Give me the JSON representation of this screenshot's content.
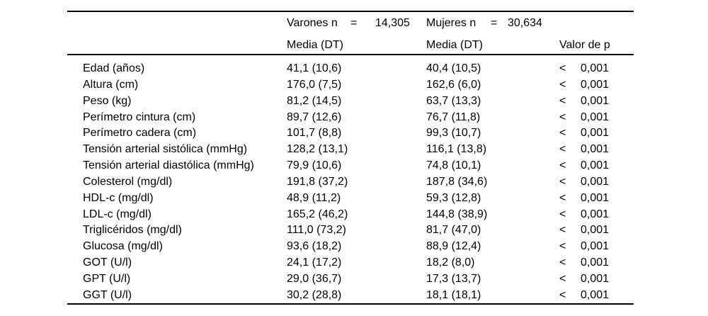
{
  "page": {
    "background_color": "#ffffff",
    "text_color": "#000000",
    "rule_color": "#000000"
  },
  "table": {
    "header": {
      "varones_label": "Varones n",
      "varones_eq": "=",
      "varones_n": "14,305",
      "mujeres_label": "Mujeres n",
      "mujeres_eq": "=",
      "mujeres_n": "30,634",
      "varones_media_dt": "Media (DT)",
      "mujeres_media_dt": "Media (DT)",
      "valor_de_p": "Valor de p"
    },
    "rows": [
      {
        "label": "Edad (años)",
        "varones_media_dt": "41,1 (10,6)",
        "mujeres_media_dt": "40,4 (10,5)",
        "p_sign": "<",
        "p_value": "0,001"
      },
      {
        "label": "Altura (cm)",
        "varones_media_dt": "176,0 (7,5)",
        "mujeres_media_dt": "162,6 (6,0)",
        "p_sign": "<",
        "p_value": "0,001"
      },
      {
        "label": "Peso (kg)",
        "varones_media_dt": "81,2 (14,5)",
        "mujeres_media_dt": "63,7 (13,3)",
        "p_sign": "<",
        "p_value": "0,001"
      },
      {
        "label": "Perímetro cintura (cm)",
        "varones_media_dt": "89,7 (12,6)",
        "mujeres_media_dt": "76,7 (11,8)",
        "p_sign": "<",
        "p_value": "0,001"
      },
      {
        "label": "Perímetro cadera (cm)",
        "varones_media_dt": "101,7 (8,8)",
        "mujeres_media_dt": "99,3 (10,7)",
        "p_sign": "<",
        "p_value": "0,001"
      },
      {
        "label": "Tensión arterial sistólica (mmHg)",
        "varones_media_dt": "128,2 (13,1)",
        "mujeres_media_dt": "116,1 (13,8)",
        "p_sign": "<",
        "p_value": "0,001"
      },
      {
        "label": "Tensión arterial diastólica (mmHg)",
        "varones_media_dt": "79,9 (10,6)",
        "mujeres_media_dt": "74,8 (10,1)",
        "p_sign": "<",
        "p_value": "0,001"
      },
      {
        "label": "Colesterol (mg/dl)",
        "varones_media_dt": "191,8 (37,2)",
        "mujeres_media_dt": "187,8 (34,6)",
        "p_sign": "<",
        "p_value": "0,001"
      },
      {
        "label": "HDL-c (mg/dl)",
        "varones_media_dt": "48,9 (11,2)",
        "mujeres_media_dt": "59,3 (12,8)",
        "p_sign": "<",
        "p_value": "0,001"
      },
      {
        "label": "LDL-c (mg/dl)",
        "varones_media_dt": "165,2 (46,2)",
        "mujeres_media_dt": "144,8 (38,9)",
        "p_sign": "<",
        "p_value": "0,001"
      },
      {
        "label": "Triglicéridos (mg/dl)",
        "varones_media_dt": "111,0 (73,2)",
        "mujeres_media_dt": "81,7 (47,0)",
        "p_sign": "<",
        "p_value": "0,001"
      },
      {
        "label": "Glucosa (mg/dl)",
        "varones_media_dt": "93,6 (18,2)",
        "mujeres_media_dt": "88,9 (12,4)",
        "p_sign": "<",
        "p_value": "0,001"
      },
      {
        "label": "GOT (U/l)",
        "varones_media_dt": "24,1 (17,2)",
        "mujeres_media_dt": "18,2 (8,0)",
        "p_sign": "<",
        "p_value": "0,001"
      },
      {
        "label": "GPT (U/l)",
        "varones_media_dt": "29,0 (36,7)",
        "mujeres_media_dt": "17,3 (13,7)",
        "p_sign": "<",
        "p_value": "0,001"
      },
      {
        "label": "GGT (U/l)",
        "varones_media_dt": "30,2 (28,8)",
        "mujeres_media_dt": "18,1 (18,1)",
        "p_sign": "<",
        "p_value": "0,001"
      }
    ]
  }
}
